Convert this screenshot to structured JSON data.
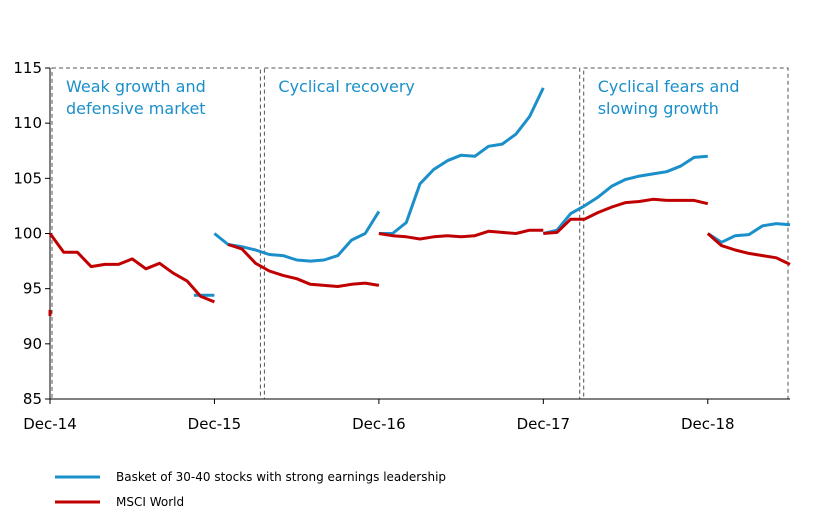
{
  "chart_data": {
    "type": "line",
    "title": "",
    "xlabel": "",
    "ylabel": "",
    "ylim": [
      85,
      115
    ],
    "yticks": [
      85,
      90,
      95,
      100,
      105,
      110,
      115
    ],
    "x_unit": "months since Dec-14",
    "xlim": [
      0,
      54
    ],
    "xticks": [
      {
        "x": 0,
        "label": "Dec-14"
      },
      {
        "x": 12,
        "label": "Dec-15"
      },
      {
        "x": 24,
        "label": "Dec-16"
      },
      {
        "x": 36,
        "label": "Dec-17"
      },
      {
        "x": 48,
        "label": "Dec-18"
      }
    ],
    "grid": false,
    "legend_position": "bottom-left",
    "phases": [
      {
        "label_lines": [
          "Weak growth and",
          "defensive market"
        ],
        "x_start": 0,
        "x_end": 15.5
      },
      {
        "label_lines": [
          "Cyclical recovery"
        ],
        "x_start": 15.5,
        "x_end": 38.8
      },
      {
        "label_lines": [
          "Cyclical fears and",
          "slowing growth"
        ],
        "x_start": 38.8,
        "x_end": 54
      }
    ],
    "series": [
      {
        "name": "Basket of 30-40 stocks with strong earnings leadership",
        "color": "#1a8fc9",
        "segments": [
          [
            [
              10.5,
              94.4
            ],
            [
              12,
              94.4
            ]
          ],
          [
            [
              12,
              100
            ],
            [
              13,
              99
            ],
            [
              14,
              98.8
            ],
            [
              15,
              98.5
            ],
            [
              16,
              98.1
            ],
            [
              17,
              98
            ],
            [
              18,
              97.6
            ],
            [
              19,
              97.5
            ],
            [
              20,
              97.6
            ],
            [
              21,
              98
            ],
            [
              22,
              99.4
            ],
            [
              23,
              100
            ],
            [
              24,
              102
            ]
          ],
          [
            [
              24,
              100
            ],
            [
              25,
              100
            ],
            [
              26,
              101
            ],
            [
              27,
              104.5
            ],
            [
              28,
              105.8
            ],
            [
              29,
              106.6
            ],
            [
              30,
              107.1
            ],
            [
              31,
              107
            ],
            [
              32,
              107.9
            ],
            [
              33,
              108.1
            ],
            [
              34,
              109
            ],
            [
              35,
              110.6
            ],
            [
              36,
              113.2
            ]
          ],
          [
            [
              36,
              100
            ],
            [
              37,
              100.3
            ],
            [
              38,
              101.8
            ],
            [
              39,
              102.5
            ],
            [
              40,
              103.3
            ],
            [
              41,
              104.3
            ],
            [
              42,
              104.9
            ],
            [
              43,
              105.2
            ],
            [
              44,
              105.4
            ],
            [
              45,
              105.6
            ],
            [
              46,
              106.1
            ],
            [
              47,
              106.9
            ],
            [
              48,
              107
            ]
          ],
          [
            [
              48,
              100
            ],
            [
              49,
              99.2
            ],
            [
              50,
              99.8
            ],
            [
              51,
              99.9
            ],
            [
              52,
              100.7
            ],
            [
              53,
              100.9
            ],
            [
              54,
              100.8
            ]
          ]
        ]
      },
      {
        "name": "MSCI World",
        "color": "#c00000",
        "segments": [
          [
            [
              0,
              92.8
            ]
          ],
          [
            [
              0,
              100
            ],
            [
              1,
              98.3
            ],
            [
              2,
              98.3
            ],
            [
              3,
              97
            ],
            [
              4,
              97.2
            ],
            [
              5,
              97.2
            ],
            [
              6,
              97.7
            ],
            [
              7,
              96.8
            ],
            [
              8,
              97.3
            ],
            [
              9,
              96.4
            ],
            [
              10,
              95.7
            ],
            [
              11,
              94.3
            ],
            [
              12,
              93.8
            ]
          ],
          [
            [
              13,
              99
            ],
            [
              14,
              98.6
            ],
            [
              15,
              97.3
            ],
            [
              16,
              96.6
            ],
            [
              17,
              96.2
            ],
            [
              18,
              95.9
            ],
            [
              19,
              95.4
            ],
            [
              20,
              95.3
            ],
            [
              21,
              95.2
            ],
            [
              22,
              95.4
            ],
            [
              23,
              95.5
            ],
            [
              24,
              95.3
            ]
          ],
          [
            [
              24,
              100
            ],
            [
              25,
              99.8
            ],
            [
              26,
              99.7
            ],
            [
              27,
              99.5
            ],
            [
              28,
              99.7
            ],
            [
              29,
              99.8
            ],
            [
              30,
              99.7
            ],
            [
              31,
              99.8
            ],
            [
              32,
              100.2
            ],
            [
              33,
              100.1
            ],
            [
              34,
              100
            ],
            [
              35,
              100.3
            ],
            [
              36,
              100.3
            ]
          ],
          [
            [
              36,
              100
            ],
            [
              37,
              100.1
            ],
            [
              38,
              101.3
            ],
            [
              39,
              101.3
            ],
            [
              40,
              101.9
            ],
            [
              41,
              102.4
            ],
            [
              42,
              102.8
            ],
            [
              43,
              102.9
            ],
            [
              44,
              103.1
            ],
            [
              45,
              103
            ],
            [
              46,
              103
            ],
            [
              47,
              103
            ],
            [
              48,
              102.7
            ]
          ],
          [
            [
              48,
              100
            ],
            [
              49,
              98.9
            ],
            [
              50,
              98.5
            ],
            [
              51,
              98.2
            ],
            [
              52,
              98
            ],
            [
              53,
              97.8
            ],
            [
              54,
              97.2
            ]
          ]
        ]
      }
    ]
  }
}
